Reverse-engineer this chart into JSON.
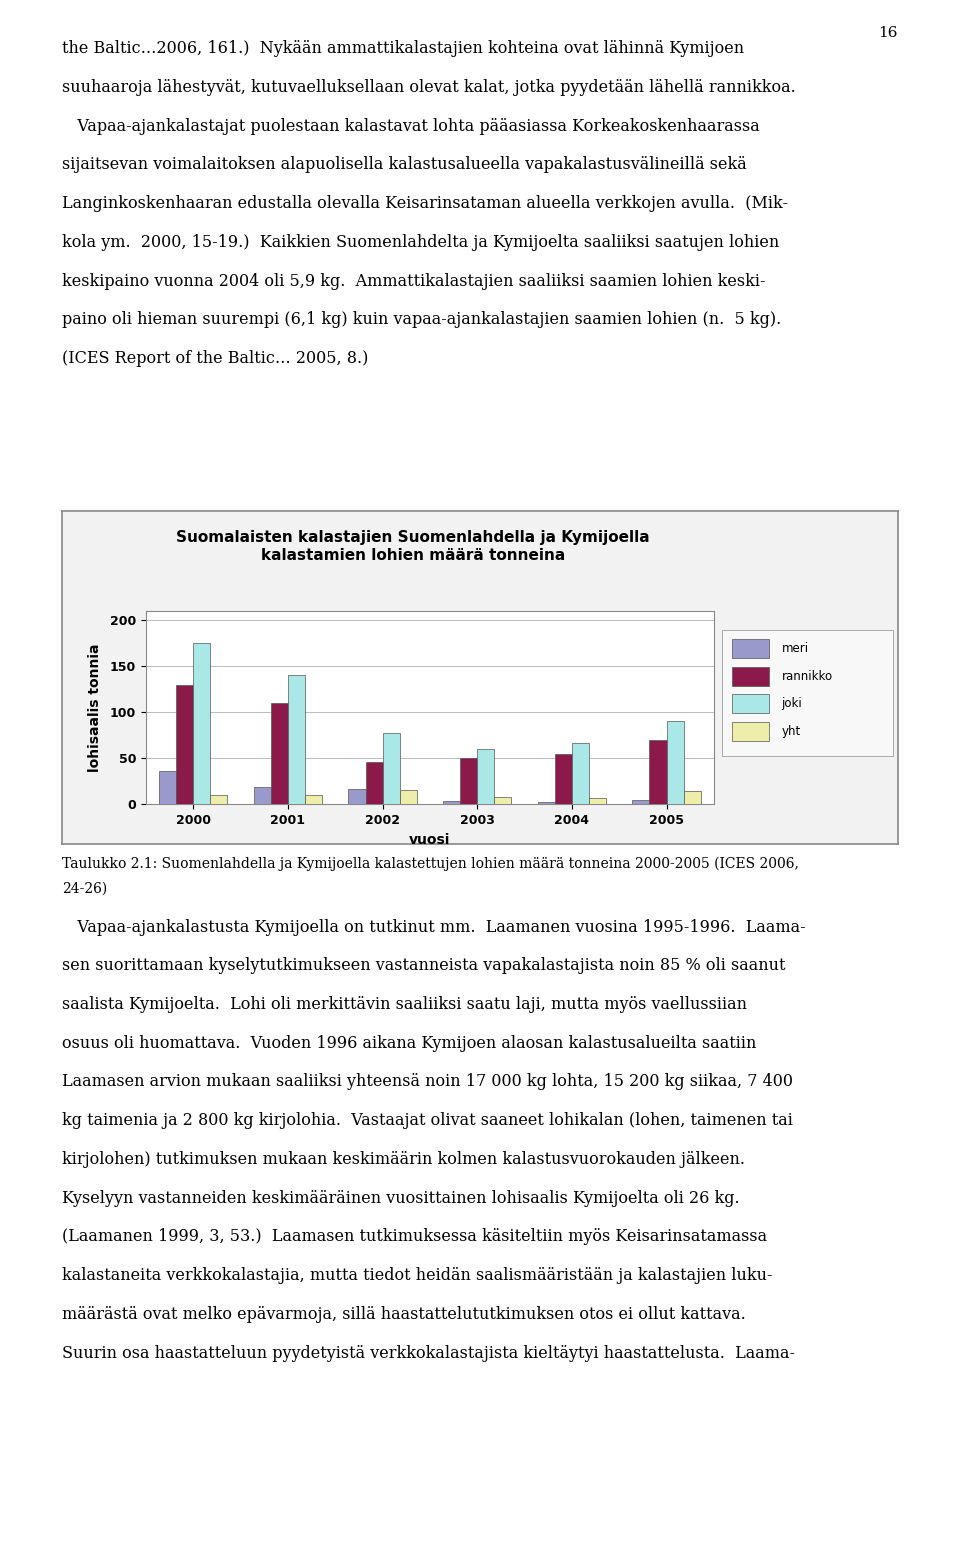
{
  "title_line1": "Suomalaisten kalastajien Suomenlahdella ja Kymijoella",
  "title_line2": "kalastamien lohien määrä tonneina",
  "ylabel": "lohisaalis tonnia",
  "xlabel": "vuosi",
  "years": [
    2000,
    2001,
    2002,
    2003,
    2004,
    2005
  ],
  "series": {
    "meri": [
      36,
      19,
      17,
      4,
      2,
      5
    ],
    "rannikko": [
      130,
      110,
      46,
      50,
      55,
      70
    ],
    "joki": [
      175,
      140,
      77,
      60,
      67,
      90
    ],
    "yht": [
      10,
      10,
      15,
      8,
      7,
      14
    ]
  },
  "colors": {
    "meri": "#9999cc",
    "rannikko": "#8b1a4a",
    "joki": "#aae8e8",
    "yht": "#eeeeaa"
  },
  "legend_labels": [
    "meri",
    "rannikko",
    "joki",
    "yht"
  ],
  "ylim": [
    0,
    210
  ],
  "yticks": [
    0,
    50,
    100,
    150,
    200
  ],
  "bar_width": 0.18,
  "chart_bg": "#f2f2f2",
  "outer_bg": "#ffffff",
  "border_color": "#888888",
  "page_number": "16",
  "top_texts": [
    "the Baltic…2006, 161.)  Nykään ammattikalastajien kohteina ovat lähinnä Kymijoen",
    "suuhaaroja lähestyvät, kutuvaelluksellaan olevat kalat, jotka pyydetään lähellä rannikkoa.",
    "   Vapaa-ajankalastajat puolestaan kalastavat lohta pääasiassa Korkeakoskenhaarassa",
    "sijaitsevan voimalaitoksen alapuolisella kalastusalueella vapakalastusvälineillä sekä",
    "Langinkoskenhaaran edustalla olevalla Keisarinsataman alueella verkkojen avulla.  (Mik-",
    "kola ym.  2000, 15-19.)  Kaikkien Suomenlahdelta ja Kymijoelta saaliiksi saatujen lohien",
    "keskipaino vuonna 2004 oli 5,9 kg.  Ammattikalastajien saaliiksi saamien lohien keski-",
    "paino oli hieman suurempi (6,1 kg) kuin vapaa-ajankalastajien saamien lohien (n.  5 kg).",
    "(ICES Report of the Baltic… 2005, 8.)"
  ],
  "caption_line1": "Taulukko 2.1: Suomenlahdella ja Kymijoella kalastettujen lohien määrä tonneina 2000-2005 (ICES 2006,",
  "caption_line2": "24-26)",
  "bottom_texts": [
    "   Vapaa-ajankalastusta Kymijoella on tutkinut mm.  Laamanen vuosina 1995-1996.  Laama-",
    "sen suorittamaan kyselytutkimukseen vastanneista vapakalastajista noin 85 % oli saanut",
    "saalista Kymijoelta.  Lohi oli merkittävin saaliiksi saatu laji, mutta myös vaellussiian",
    "osuus oli huomattava.  Vuoden 1996 aikana Kymijoen alaosan kalastusalueilta saatiin",
    "Laamasen arvion mukaan saaliiksi yhteensä noin 17 000 kg lohta, 15 200 kg siikaa, 7 400",
    "kg taimenia ja 2 800 kg kirjolohia.  Vastaajat olivat saaneet lohikalan (lohen, taimenen tai",
    "kirjolohen) tutkimuksen mukaan keskimäärin kolmen kalastusvuorokauden jälkeen.",
    "Kyselyyn vastanneiden keskimääräinen vuosittainen lohisaalis Kymijoelta oli 26 kg.",
    "(Laamanen 1999, 3, 53.)  Laamasen tutkimuksessa käsiteltiin myös Keisarinsatamassa",
    "kalastaneita verkkokalastajia, mutta tiedot heidän saalismääristään ja kalastajien luku-",
    "määrästä ovat melko epävarmoja, sillä haastattelututkimuksen otos ei ollut kattava.",
    "Suurin osa haastatteluun pyydetyistä verkkokalastajista kieltäytyi haastattelusta.  Laama-"
  ]
}
